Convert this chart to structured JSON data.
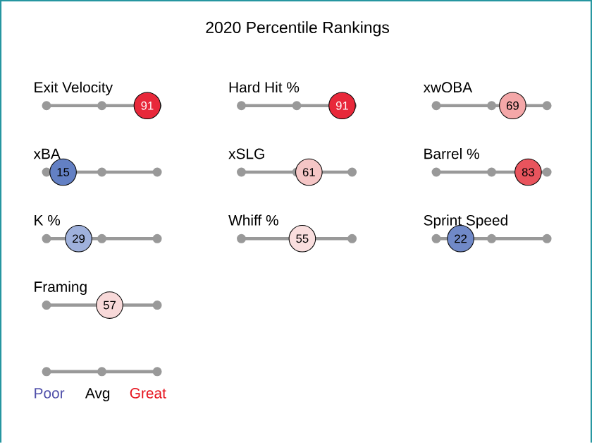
{
  "chart_data": {
    "type": "other",
    "title": "2020 Percentile Rankings",
    "categories": [
      "Exit Velocity",
      "Hard Hit %",
      "xwOBA",
      "xBA",
      "xSLG",
      "Barrel %",
      "K %",
      "Whiff %",
      "Sprint Speed",
      "Framing"
    ],
    "values": [
      91,
      91,
      69,
      15,
      61,
      83,
      29,
      55,
      22,
      57
    ],
    "colors": [
      "#e8283a",
      "#e8283a",
      "#f4a7a8",
      "#6380c4",
      "#f5c6c6",
      "#e9545d",
      "#9fb1dc",
      "#f9dede",
      "#7089c8",
      "#f8d9d9"
    ],
    "data_labels": true,
    "annotations": [
      "Poor",
      "Avg",
      "Great"
    ]
  }
}
